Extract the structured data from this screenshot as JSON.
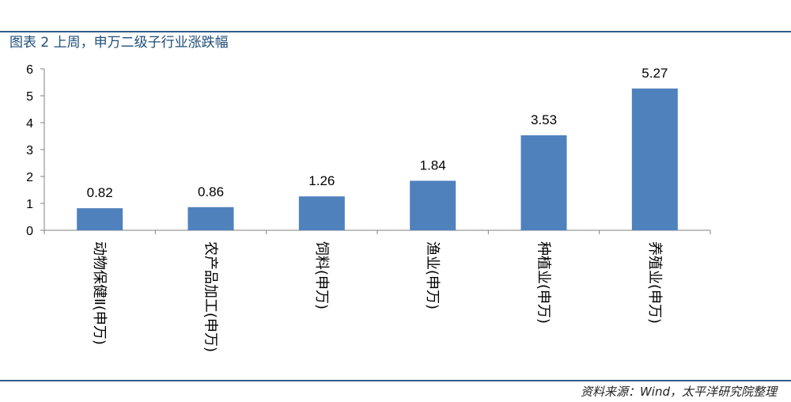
{
  "figure": {
    "title": "图表 2 上周，申万二级子行业涨跌幅",
    "source": "资料来源：Wind，太平洋研究院整理"
  },
  "chart_data": {
    "type": "bar",
    "categories": [
      "动物保健Ⅱ(申万)",
      "农产品加工(申万)",
      "饲料(申万)",
      "渔业(申万)",
      "种植业(申万)",
      "养殖业(申万)"
    ],
    "values": [
      0.82,
      0.86,
      1.26,
      1.84,
      3.53,
      5.27
    ],
    "value_labels": [
      "0.82",
      "0.86",
      "1.26",
      "1.84",
      "3.53",
      "5.27"
    ],
    "yticks": [
      "0",
      "1",
      "2",
      "3",
      "4",
      "5",
      "6"
    ],
    "ylim": [
      0,
      6
    ],
    "bar_color": "#4f81bd",
    "grid": false,
    "legend": "none"
  }
}
